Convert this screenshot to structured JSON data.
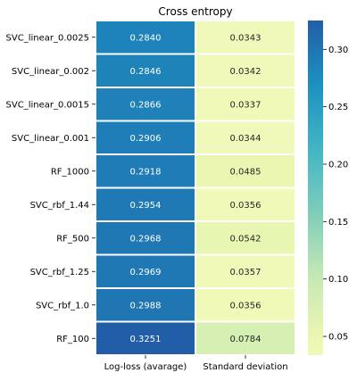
{
  "chart_data": {
    "type": "heatmap",
    "title": "Cross entropy",
    "rows": [
      "SVC_linear_0.0025",
      "SVC_linear_0.002",
      "SVC_linear_0.0015",
      "SVC_linear_0.001",
      "RF_1000",
      "SVC_rbf_1.44",
      "RF_500",
      "SVC_rbf_1.25",
      "SVC_rbf_1.0",
      "RF_100"
    ],
    "columns": [
      "Log-loss (avarage)",
      "Standard deviation"
    ],
    "values": [
      [
        0.284,
        0.0343
      ],
      [
        0.2846,
        0.0342
      ],
      [
        0.2866,
        0.0337
      ],
      [
        0.2906,
        0.0344
      ],
      [
        0.2918,
        0.0485
      ],
      [
        0.2954,
        0.0356
      ],
      [
        0.2968,
        0.0542
      ],
      [
        0.2969,
        0.0357
      ],
      [
        0.2988,
        0.0356
      ],
      [
        0.3251,
        0.0784
      ]
    ],
    "labels": [
      [
        "0.2840",
        "0.0343"
      ],
      [
        "0.2846",
        "0.0342"
      ],
      [
        "0.2866",
        "0.0337"
      ],
      [
        "0.2906",
        "0.0344"
      ],
      [
        "0.2918",
        "0.0485"
      ],
      [
        "0.2954",
        "0.0356"
      ],
      [
        "0.2968",
        "0.0542"
      ],
      [
        "0.2969",
        "0.0357"
      ],
      [
        "0.2988",
        "0.0356"
      ],
      [
        "0.3251",
        "0.0784"
      ]
    ],
    "colormap": "YlGnBu",
    "color_range": [
      0.0337,
      0.3251
    ],
    "colorbar_ticks": [
      "0.05",
      "0.10",
      "0.15",
      "0.20",
      "0.25",
      "0.30"
    ],
    "colorbar_tick_values": [
      0.05,
      0.1,
      0.15,
      0.2,
      0.25,
      0.3
    ]
  }
}
